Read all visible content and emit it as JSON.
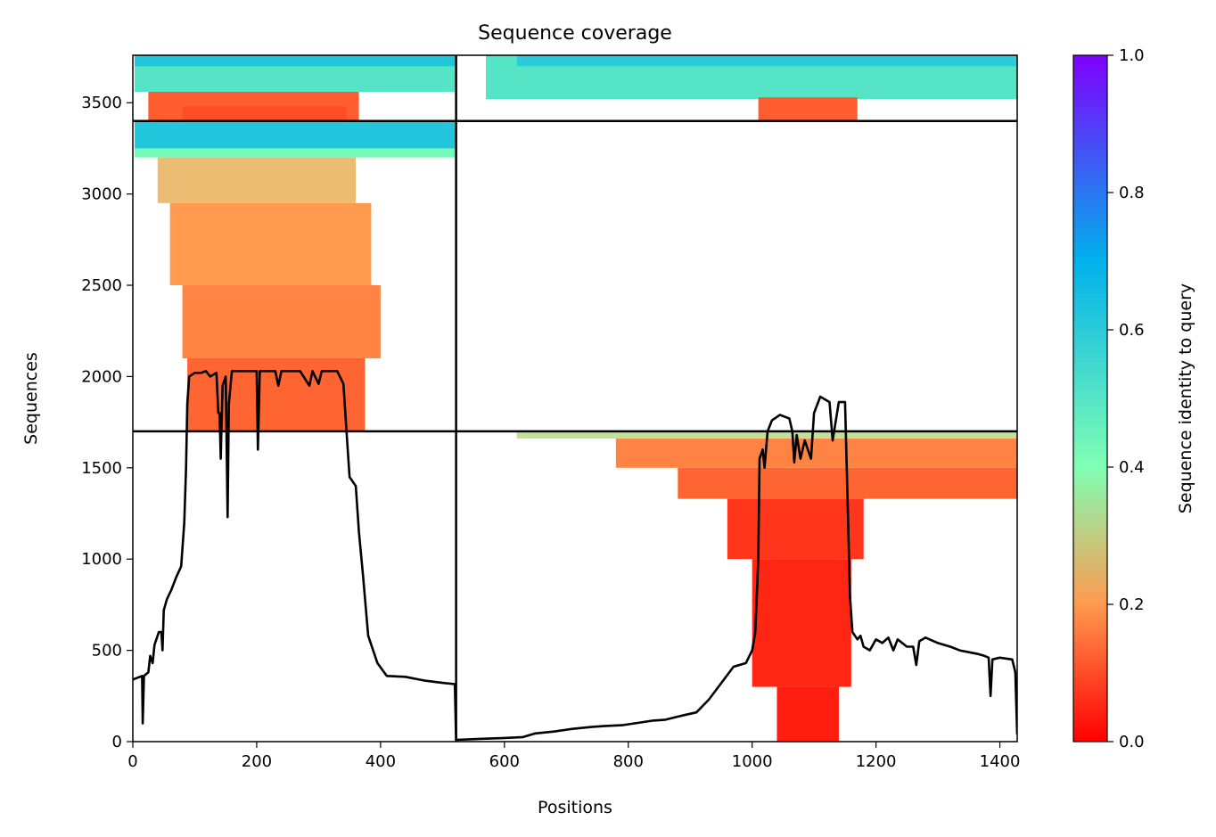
{
  "chart_data": {
    "type": "heatmap",
    "title": "Sequence coverage",
    "xlabel": "Positions",
    "ylabel": "Sequences",
    "xlim": [
      0,
      1428
    ],
    "ylim": [
      0,
      3760
    ],
    "xticks": [
      0,
      200,
      400,
      600,
      800,
      1000,
      1200,
      1400
    ],
    "yticks": [
      0,
      500,
      1000,
      1500,
      2000,
      2500,
      3000,
      3500
    ],
    "segment_boundaries": {
      "x": [
        522
      ],
      "y": [
        1700,
        3400
      ]
    },
    "colorbar": {
      "label": "Sequence identity to query",
      "range": [
        0.0,
        1.0
      ],
      "ticks": [
        0.0,
        0.2,
        0.4,
        0.6,
        0.8,
        1.0
      ],
      "colormap": "rainbow_r",
      "stops": [
        "#ff0000",
        "#ff9a4f",
        "#e0d38a",
        "#80ffb4",
        "#00b1eb",
        "#7f00ff"
      ]
    },
    "coverage_line": {
      "name": "coverage",
      "color": "#000000",
      "points": [
        [
          0,
          340
        ],
        [
          15,
          360
        ],
        [
          16,
          100
        ],
        [
          18,
          360
        ],
        [
          25,
          380
        ],
        [
          28,
          470
        ],
        [
          32,
          430
        ],
        [
          35,
          530
        ],
        [
          38,
          560
        ],
        [
          42,
          600
        ],
        [
          46,
          600
        ],
        [
          48,
          500
        ],
        [
          50,
          720
        ],
        [
          55,
          780
        ],
        [
          62,
          830
        ],
        [
          70,
          900
        ],
        [
          78,
          960
        ],
        [
          83,
          1200
        ],
        [
          86,
          1500
        ],
        [
          88,
          1850
        ],
        [
          91,
          2000
        ],
        [
          100,
          2020
        ],
        [
          110,
          2020
        ],
        [
          118,
          2030
        ],
        [
          125,
          2000
        ],
        [
          135,
          2020
        ],
        [
          138,
          1800
        ],
        [
          140,
          1800
        ],
        [
          142,
          1550
        ],
        [
          145,
          1950
        ],
        [
          150,
          2000
        ],
        [
          153,
          1230
        ],
        [
          155,
          1850
        ],
        [
          160,
          2030
        ],
        [
          175,
          2030
        ],
        [
          195,
          2030
        ],
        [
          200,
          2030
        ],
        [
          202,
          1600
        ],
        [
          205,
          2030
        ],
        [
          230,
          2030
        ],
        [
          235,
          1950
        ],
        [
          240,
          2030
        ],
        [
          270,
          2030
        ],
        [
          285,
          1950
        ],
        [
          290,
          2030
        ],
        [
          300,
          1960
        ],
        [
          305,
          2030
        ],
        [
          330,
          2030
        ],
        [
          340,
          1960
        ],
        [
          345,
          1700
        ],
        [
          350,
          1450
        ],
        [
          360,
          1400
        ],
        [
          365,
          1150
        ],
        [
          372,
          900
        ],
        [
          380,
          580
        ],
        [
          395,
          430
        ],
        [
          410,
          360
        ],
        [
          440,
          355
        ],
        [
          470,
          335
        ],
        [
          500,
          322
        ],
        [
          520,
          315
        ],
        [
          522,
          10
        ],
        [
          560,
          15
        ],
        [
          600,
          20
        ],
        [
          630,
          25
        ],
        [
          650,
          45
        ],
        [
          680,
          55
        ],
        [
          710,
          70
        ],
        [
          740,
          80
        ],
        [
          760,
          85
        ],
        [
          790,
          90
        ],
        [
          820,
          105
        ],
        [
          840,
          115
        ],
        [
          860,
          120
        ],
        [
          890,
          145
        ],
        [
          910,
          160
        ],
        [
          930,
          230
        ],
        [
          950,
          320
        ],
        [
          970,
          410
        ],
        [
          990,
          430
        ],
        [
          1000,
          500
        ],
        [
          1005,
          600
        ],
        [
          1010,
          1000
        ],
        [
          1012,
          1550
        ],
        [
          1017,
          1600
        ],
        [
          1020,
          1500
        ],
        [
          1025,
          1700
        ],
        [
          1032,
          1760
        ],
        [
          1045,
          1790
        ],
        [
          1060,
          1770
        ],
        [
          1065,
          1700
        ],
        [
          1068,
          1530
        ],
        [
          1072,
          1680
        ],
        [
          1078,
          1550
        ],
        [
          1085,
          1650
        ],
        [
          1095,
          1550
        ],
        [
          1100,
          1800
        ],
        [
          1110,
          1890
        ],
        [
          1125,
          1860
        ],
        [
          1130,
          1650
        ],
        [
          1140,
          1860
        ],
        [
          1150,
          1860
        ],
        [
          1155,
          1200
        ],
        [
          1158,
          800
        ],
        [
          1162,
          600
        ],
        [
          1170,
          560
        ],
        [
          1175,
          580
        ],
        [
          1180,
          520
        ],
        [
          1190,
          500
        ],
        [
          1200,
          560
        ],
        [
          1210,
          540
        ],
        [
          1220,
          570
        ],
        [
          1228,
          500
        ],
        [
          1235,
          560
        ],
        [
          1250,
          520
        ],
        [
          1260,
          520
        ],
        [
          1265,
          420
        ],
        [
          1270,
          550
        ],
        [
          1280,
          570
        ],
        [
          1300,
          540
        ],
        [
          1320,
          520
        ],
        [
          1335,
          500
        ],
        [
          1350,
          490
        ],
        [
          1365,
          480
        ],
        [
          1375,
          470
        ],
        [
          1382,
          460
        ],
        [
          1385,
          250
        ],
        [
          1388,
          450
        ],
        [
          1400,
          460
        ],
        [
          1410,
          455
        ],
        [
          1420,
          450
        ],
        [
          1425,
          380
        ],
        [
          1428,
          40
        ]
      ]
    },
    "coverage_blocks": [
      {
        "x": [
          3,
          520
        ],
        "y": [
          3560,
          3760
        ],
        "identity": 0.5
      },
      {
        "x": [
          3,
          520
        ],
        "y": [
          3700,
          3760
        ],
        "identity": 0.62
      },
      {
        "x": [
          25,
          365
        ],
        "y": [
          3400,
          3560
        ],
        "identity": 0.12
      },
      {
        "x": [
          80,
          345
        ],
        "y": [
          3400,
          3480
        ],
        "identity": 0.1
      },
      {
        "x": [
          570,
          1428
        ],
        "y": [
          3520,
          3760
        ],
        "identity": 0.5
      },
      {
        "x": [
          620,
          1428
        ],
        "y": [
          3700,
          3760
        ],
        "identity": 0.6
      },
      {
        "x": [
          1010,
          1170
        ],
        "y": [
          3400,
          3530
        ],
        "identity": 0.12
      },
      {
        "x": [
          3,
          520
        ],
        "y": [
          3240,
          3400
        ],
        "identity": 0.62
      },
      {
        "x": [
          3,
          520
        ],
        "y": [
          3200,
          3250
        ],
        "identity": 0.42
      },
      {
        "x": [
          40,
          360
        ],
        "y": [
          2950,
          3200
        ],
        "identity": 0.26
      },
      {
        "x": [
          60,
          385
        ],
        "y": [
          2500,
          2950
        ],
        "identity": 0.2
      },
      {
        "x": [
          80,
          400
        ],
        "y": [
          2100,
          2500
        ],
        "identity": 0.17
      },
      {
        "x": [
          88,
          375
        ],
        "y": [
          1700,
          2100
        ],
        "identity": 0.13
      },
      {
        "x": [
          620,
          1428
        ],
        "y": [
          1660,
          1700
        ],
        "identity": 0.33
      },
      {
        "x": [
          780,
          1428
        ],
        "y": [
          1500,
          1660
        ],
        "identity": 0.17
      },
      {
        "x": [
          880,
          1428
        ],
        "y": [
          1330,
          1500
        ],
        "identity": 0.13
      },
      {
        "x": [
          960,
          1180
        ],
        "y": [
          1000,
          1330
        ],
        "identity": 0.07
      },
      {
        "x": [
          1000,
          1160
        ],
        "y": [
          300,
          1000
        ],
        "identity": 0.05
      },
      {
        "x": [
          1040,
          1140
        ],
        "y": [
          0,
          300
        ],
        "identity": 0.04
      }
    ]
  }
}
